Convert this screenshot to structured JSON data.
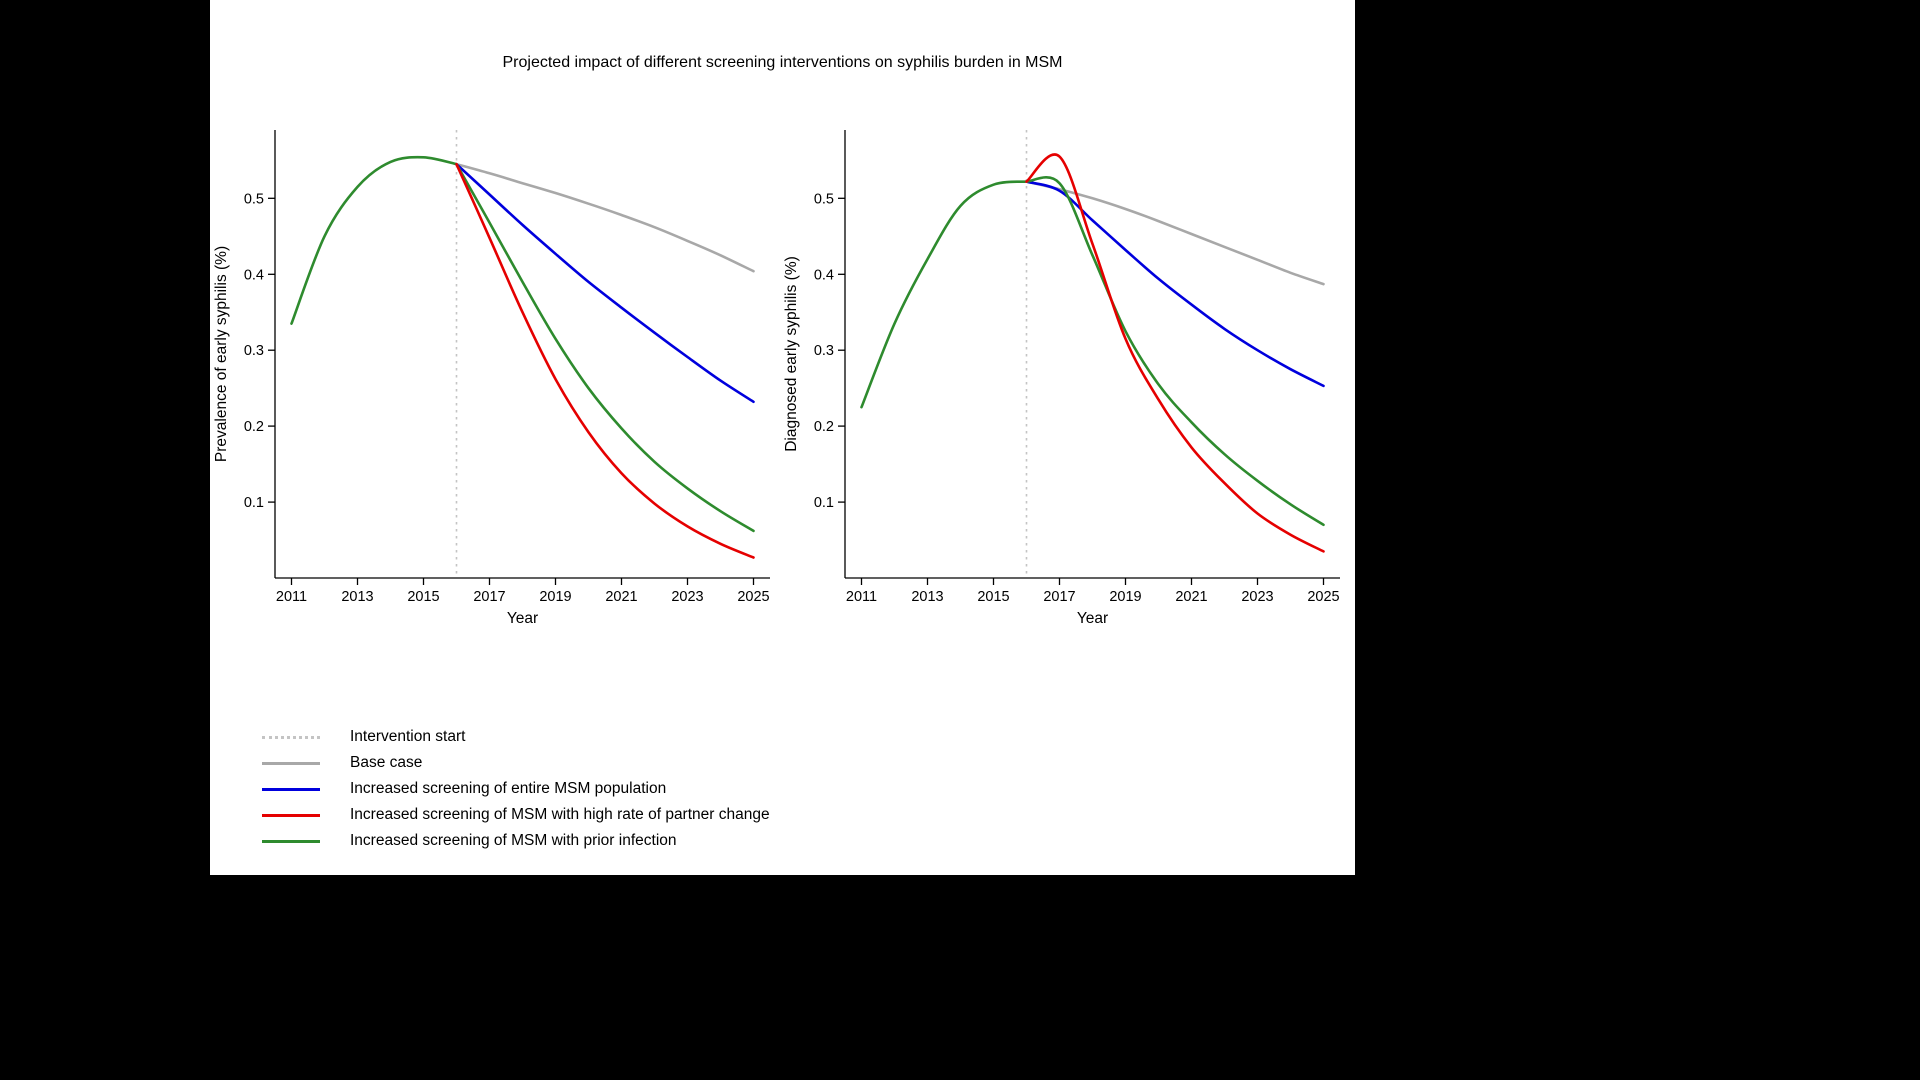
{
  "page": {
    "title": "Projected impact of different screening interventions on syphilis burden in MSM"
  },
  "colors": {
    "base_case": "#a8a8a8",
    "entire_msm": "#0000dd",
    "high_partner_change": "#e50000",
    "prior_infection": "#2e8b2e",
    "intervention_line": "#c4c4c4",
    "axis": "#000000"
  },
  "legend": {
    "items": [
      {
        "label": "Intervention start",
        "style": "dotted",
        "color_key": "intervention_line"
      },
      {
        "label": "Base case",
        "style": "solid",
        "color_key": "base_case"
      },
      {
        "label": "Increased screening of entire MSM population",
        "style": "solid",
        "color_key": "entire_msm"
      },
      {
        "label": "Increased screening of MSM with high rate of partner change",
        "style": "solid",
        "color_key": "high_partner_change"
      },
      {
        "label": "Increased screening of MSM with prior infection",
        "style": "solid",
        "color_key": "prior_infection"
      }
    ]
  },
  "chart_data": [
    {
      "type": "line",
      "title": "",
      "xlabel": "Year",
      "ylabel": "Prevalence of early syphilis (%)",
      "xlim": [
        2010.5,
        2025.5
      ],
      "ylim": [
        0,
        0.59
      ],
      "xticks": [
        2011,
        2013,
        2015,
        2017,
        2019,
        2021,
        2023,
        2025
      ],
      "yticks": [
        0.1,
        0.2,
        0.3,
        0.4,
        0.5
      ],
      "intervention_year": 2016,
      "grid": false,
      "series": [
        {
          "name": "Historical pre-intervention",
          "color_key": "prior_infection",
          "x": [
            2011,
            2012,
            2013,
            2014,
            2015,
            2016
          ],
          "y": [
            0.335,
            0.45,
            0.515,
            0.548,
            0.554,
            0.545
          ]
        },
        {
          "name": "Base case",
          "color_key": "base_case",
          "x": [
            2016,
            2017,
            2018,
            2019,
            2020,
            2021,
            2022,
            2023,
            2024,
            2025
          ],
          "y": [
            0.545,
            0.533,
            0.52,
            0.507,
            0.493,
            0.478,
            0.462,
            0.444,
            0.425,
            0.404
          ]
        },
        {
          "name": "Increased screening of entire MSM population",
          "color_key": "entire_msm",
          "x": [
            2016,
            2017,
            2018,
            2019,
            2020,
            2021,
            2022,
            2023,
            2024,
            2025
          ],
          "y": [
            0.545,
            0.505,
            0.465,
            0.427,
            0.39,
            0.356,
            0.323,
            0.291,
            0.26,
            0.232
          ]
        },
        {
          "name": "Increased screening of MSM with prior infection",
          "color_key": "prior_infection",
          "x": [
            2016,
            2017,
            2018,
            2019,
            2020,
            2021,
            2022,
            2023,
            2024,
            2025
          ],
          "y": [
            0.545,
            0.468,
            0.39,
            0.315,
            0.25,
            0.197,
            0.153,
            0.118,
            0.088,
            0.062
          ]
        },
        {
          "name": "Increased screening of MSM with high rate of partner change",
          "color_key": "high_partner_change",
          "x": [
            2016,
            2017,
            2018,
            2019,
            2020,
            2021,
            2022,
            2023,
            2024,
            2025
          ],
          "y": [
            0.545,
            0.448,
            0.35,
            0.262,
            0.192,
            0.138,
            0.098,
            0.068,
            0.045,
            0.027
          ]
        }
      ]
    },
    {
      "type": "line",
      "title": "",
      "xlabel": "Year",
      "ylabel": "Diagnosed early syphilis (%)",
      "xlim": [
        2010.5,
        2025.5
      ],
      "ylim": [
        0,
        0.59
      ],
      "xticks": [
        2011,
        2013,
        2015,
        2017,
        2019,
        2021,
        2023,
        2025
      ],
      "yticks": [
        0.1,
        0.2,
        0.3,
        0.4,
        0.5
      ],
      "intervention_year": 2016,
      "grid": false,
      "series": [
        {
          "name": "Historical pre-intervention",
          "color_key": "prior_infection",
          "x": [
            2011,
            2012,
            2013,
            2014,
            2015,
            2016
          ],
          "y": [
            0.225,
            0.335,
            0.42,
            0.49,
            0.518,
            0.522
          ]
        },
        {
          "name": "Base case",
          "color_key": "base_case",
          "x": [
            2016,
            2017,
            2018,
            2019,
            2020,
            2021,
            2022,
            2023,
            2024,
            2025
          ],
          "y": [
            0.522,
            0.512,
            0.5,
            0.486,
            0.47,
            0.453,
            0.436,
            0.419,
            0.402,
            0.387
          ]
        },
        {
          "name": "Increased screening of entire MSM population",
          "color_key": "entire_msm",
          "x": [
            2016,
            2017,
            2018,
            2019,
            2020,
            2021,
            2022,
            2023,
            2024,
            2025
          ],
          "y": [
            0.522,
            0.51,
            0.471,
            0.432,
            0.394,
            0.36,
            0.328,
            0.3,
            0.275,
            0.253
          ]
        },
        {
          "name": "Increased screening of MSM with prior infection",
          "color_key": "prior_infection",
          "x": [
            2016,
            2017,
            2018,
            2019,
            2020,
            2021,
            2022,
            2023,
            2024,
            2025
          ],
          "y": [
            0.522,
            0.52,
            0.425,
            0.325,
            0.255,
            0.205,
            0.163,
            0.128,
            0.097,
            0.07
          ]
        },
        {
          "name": "Increased screening of MSM with high rate of partner change",
          "color_key": "high_partner_change",
          "x": [
            2016,
            2017,
            2018,
            2019,
            2020,
            2021,
            2022,
            2023,
            2024,
            2025
          ],
          "y": [
            0.522,
            0.555,
            0.44,
            0.315,
            0.235,
            0.172,
            0.125,
            0.085,
            0.057,
            0.035
          ]
        }
      ]
    }
  ]
}
